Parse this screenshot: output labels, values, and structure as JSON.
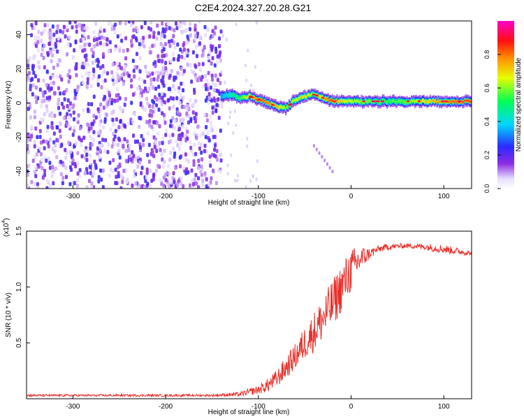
{
  "title": "C2E4.2024.327.20.28.G21",
  "chart_data": [
    {
      "type": "heatmap",
      "xlabel": "Height of straight line (km)",
      "ylabel": "Frequency (Hz)",
      "xlim": [
        -350,
        130
      ],
      "ylim": [
        -50,
        48
      ],
      "xticks": [
        -300,
        -200,
        -100,
        0,
        100
      ],
      "yticks": [
        -40,
        -20,
        0,
        20,
        40
      ],
      "grid": false,
      "colorbar": {
        "label": "Normalized spectral amplitude",
        "range": [
          0,
          1
        ],
        "ticks": [
          "0.0",
          "0.2",
          "0.4",
          "0.6",
          "0.8"
        ],
        "colormap": "rainbow (white, violet, blue, cyan, green, yellow, red, magenta)"
      },
      "ridge": {
        "description": "dominant frequency track visible from about -140 km upward",
        "x": [
          -140,
          -130,
          -120,
          -110,
          -100,
          -90,
          -80,
          -70,
          -60,
          -50,
          -40,
          -30,
          -20,
          -10,
          0,
          20,
          40,
          60,
          80,
          100,
          130
        ],
        "frequency_hz": [
          4,
          5,
          3,
          4,
          2,
          0,
          -2,
          -3,
          2,
          4,
          5,
          3,
          1,
          1,
          1,
          1,
          1,
          1,
          1,
          1,
          1
        ],
        "amplitude": [
          0.35,
          0.45,
          0.55,
          0.7,
          0.85,
          0.8,
          0.75,
          0.6,
          0.65,
          0.7,
          0.6,
          0.75,
          0.85,
          0.7,
          0.65,
          0.6,
          0.55,
          0.6,
          0.7,
          0.8,
          0.85
        ]
      },
      "noise_region": {
        "x_range": [
          -350,
          -140
        ],
        "amplitude_range": [
          0.05,
          0.25
        ]
      },
      "secondary_trace": {
        "x": [
          -40,
          -20
        ],
        "frequency_hz": [
          -25,
          -40
        ]
      }
    },
    {
      "type": "line",
      "xlabel": "Height of straight line (km)",
      "ylabel": "SNR (10 * v/v)",
      "y_multiplier_label": "(x10",
      "y_multiplier_exponent": "4",
      "y_multiplier_close": ")",
      "xlim": [
        -350,
        130
      ],
      "ylim": [
        0,
        1.5
      ],
      "xticks": [
        -300,
        -200,
        -100,
        0,
        100
      ],
      "yticks": [
        "0.5",
        "1.0",
        "1.5"
      ],
      "grid": false,
      "series": [
        {
          "color": "#e8302c",
          "x": [
            -350,
            -300,
            -250,
            -200,
            -150,
            -120,
            -100,
            -90,
            -80,
            -70,
            -60,
            -50,
            -40,
            -30,
            -20,
            -10,
            0,
            10,
            20,
            30,
            40,
            60,
            80,
            100,
            130
          ],
          "values": [
            0.03,
            0.03,
            0.03,
            0.03,
            0.03,
            0.04,
            0.08,
            0.12,
            0.18,
            0.28,
            0.38,
            0.5,
            0.6,
            0.72,
            0.85,
            1.0,
            1.15,
            1.25,
            1.3,
            1.34,
            1.36,
            1.37,
            1.36,
            1.34,
            1.3
          ],
          "noise_amplitude": [
            0.01,
            0.01,
            0.01,
            0.01,
            0.01,
            0.02,
            0.04,
            0.06,
            0.08,
            0.1,
            0.12,
            0.15,
            0.18,
            0.2,
            0.22,
            0.22,
            0.2,
            0.12,
            0.05,
            0.03,
            0.03,
            0.02,
            0.03,
            0.04,
            0.02
          ]
        }
      ]
    }
  ]
}
